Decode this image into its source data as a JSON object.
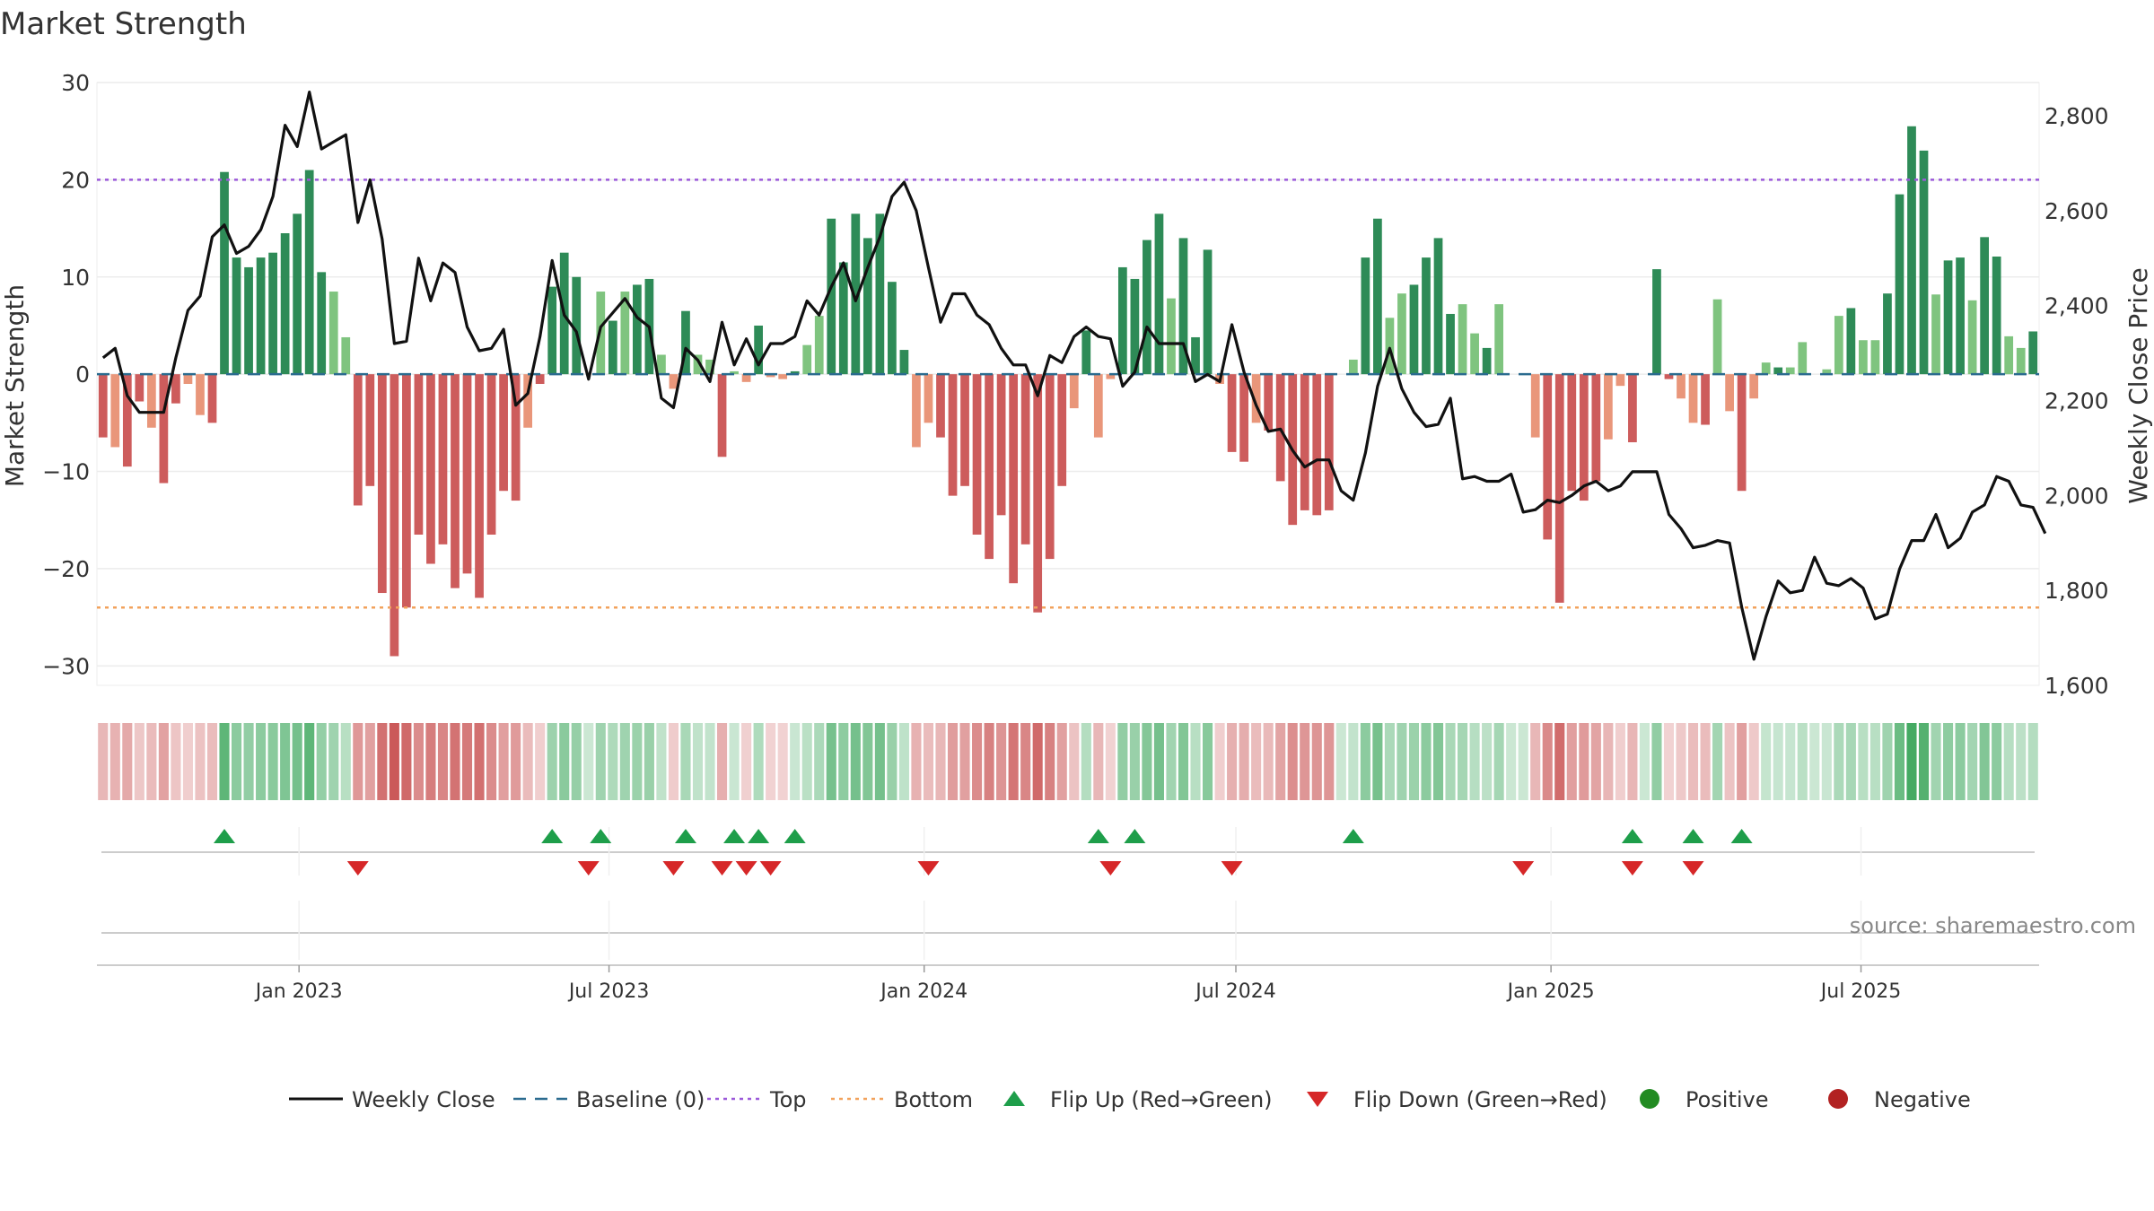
{
  "chart_data": {
    "type": "bar+line",
    "title": "Market Strength",
    "ylabel_left": "Market Strength",
    "ylabel_right": "Weekly Close Price",
    "source": "source: sharemaestro.com",
    "ylim_left": [
      -32,
      30
    ],
    "ylim_right": [
      1600,
      2870
    ],
    "yticks_left": [
      30,
      20,
      10,
      0,
      -10,
      -20,
      -30
    ],
    "yticks_left_labels": [
      "30",
      "20",
      "10",
      "0",
      "−10",
      "−20",
      "−30"
    ],
    "yticks_right": [
      2800,
      2600,
      2400,
      2200,
      2000,
      1800,
      1600
    ],
    "yticks_right_labels": [
      "2,800",
      "2,600",
      "2,400",
      "2,200",
      "2,000",
      "1,800",
      "1,600"
    ],
    "top_level": 20,
    "bottom_level": -24,
    "x_start": "2022-09-05",
    "x_end": "2025-10-13",
    "x_ticks": [
      {
        "date": "2023-01-01",
        "label": "Jan 2023"
      },
      {
        "date": "2023-07-01",
        "label": "Jul 2023"
      },
      {
        "date": "2024-01-01",
        "label": "Jan 2024"
      },
      {
        "date": "2024-07-01",
        "label": "Jul 2024"
      },
      {
        "date": "2025-01-01",
        "label": "Jan 2025"
      },
      {
        "date": "2025-07-01",
        "label": "Jul 2025"
      }
    ],
    "strength": [
      -6.5,
      -7.5,
      -9.5,
      -2.8,
      -5.5,
      -11.2,
      -3,
      -1,
      -4.2,
      -5,
      20.8,
      12,
      11,
      12,
      12.5,
      14.5,
      16.5,
      21,
      10.5,
      8.5,
      3.8,
      -13.5,
      -11.5,
      -22.5,
      -29,
      -24,
      -16.5,
      -19.5,
      -17.5,
      -22,
      -20.5,
      -23,
      -16.5,
      -12,
      -13,
      -5.5,
      -1,
      9,
      12.5,
      10,
      0,
      8.5,
      5.5,
      8.5,
      9.2,
      9.8,
      2,
      -1.5,
      6.5,
      2,
      1.5,
      -8.5,
      0.3,
      -0.8,
      5,
      -0.3,
      -0.5,
      0.3,
      3,
      6,
      16,
      11.5,
      16.5,
      14,
      16.5,
      9.5,
      2.5,
      -7.5,
      -5,
      -6.5,
      -12.5,
      -11.5,
      -16.5,
      -19,
      -14.5,
      -21.5,
      -17.5,
      -24.5,
      -19,
      -11.5,
      -3.5,
      4.5,
      -6.5,
      -0.5,
      11,
      9.8,
      13.8,
      16.5,
      7.8,
      14,
      3.8,
      12.8,
      -1,
      -8,
      -9,
      -5,
      -5.8,
      -11,
      -15.5,
      -14,
      -14.5,
      -14,
      0,
      1.5,
      12,
      16,
      5.8,
      8.3,
      9.2,
      12,
      14,
      6.2,
      7.2,
      4.2,
      2.7,
      7.2,
      0,
      0,
      -6.5,
      -17,
      -23.5,
      -12,
      -13,
      -11,
      -6.7,
      -1.2,
      -7,
      0,
      10.8,
      -0.5,
      -2.5,
      -5,
      -5.2,
      7.7,
      -3.8,
      -12,
      -2.5,
      1.2,
      0.7,
      0.7,
      3.3,
      0,
      0.5,
      6,
      6.8,
      3.5,
      3.5,
      8.3,
      18.5,
      25.5,
      23,
      8.2,
      11.7,
      12,
      7.6,
      14.1,
      12.1,
      3.9,
      2.7,
      4.4
    ],
    "close": [
      2290,
      2310,
      2210,
      2175,
      2175,
      2175,
      2290,
      2390,
      2420,
      2545,
      2570,
      2510,
      2525,
      2560,
      2630,
      2780,
      2735,
      2850,
      2730,
      2745,
      2760,
      2575,
      2665,
      2540,
      2320,
      2325,
      2500,
      2410,
      2490,
      2470,
      2355,
      2305,
      2310,
      2350,
      2190,
      2215,
      2335,
      2495,
      2380,
      2345,
      2245,
      2355,
      2385,
      2415,
      2375,
      2355,
      2205,
      2185,
      2310,
      2285,
      2240,
      2365,
      2275,
      2330,
      2275,
      2320,
      2320,
      2335,
      2410,
      2380,
      2440,
      2490,
      2410,
      2480,
      2545,
      2630,
      2660,
      2600,
      2480,
      2365,
      2425,
      2425,
      2380,
      2360,
      2310,
      2275,
      2275,
      2210,
      2295,
      2280,
      2335,
      2355,
      2335,
      2330,
      2230,
      2260,
      2355,
      2320,
      2320,
      2320,
      2240,
      2255,
      2240,
      2360,
      2260,
      2190,
      2135,
      2140,
      2095,
      2060,
      2075,
      2075,
      2010,
      1990,
      2090,
      2230,
      2310,
      2225,
      2175,
      2145,
      2150,
      2205,
      2035,
      2040,
      2030,
      2030,
      2045,
      1965,
      1970,
      1990,
      1985,
      2000,
      2020,
      2030,
      2010,
      2020,
      2050,
      2050,
      2050,
      1960,
      1930,
      1890,
      1895,
      1905,
      1900,
      1765,
      1655,
      1745,
      1820,
      1795,
      1800,
      1870,
      1815,
      1810,
      1825,
      1805,
      1740,
      1750,
      1845,
      1905,
      1905,
      1960,
      1890,
      1910,
      1965,
      1980,
      2040,
      2030,
      1980,
      1975,
      1920
    ],
    "flip_up_weeks": [
      10,
      37,
      41,
      48,
      52,
      54,
      57,
      82,
      85,
      103,
      126,
      131,
      135
    ],
    "flip_down_weeks": [
      21,
      40,
      47,
      51,
      53,
      55,
      68,
      83,
      93,
      117,
      126,
      131
    ],
    "series_colors": {
      "weekly_close": "#111111",
      "baseline": "#2b6b8f",
      "top": "#9b59d9",
      "bottom": "#f2a25c",
      "strong_green": "#2e8b57",
      "light_green": "#7fc47f",
      "strong_red": "#cd5c5c",
      "light_red": "#e9967a",
      "flip_up": "#1e9e4a",
      "flip_down": "#d62728",
      "positive": "#228b22",
      "negative": "#b22222"
    },
    "legend": [
      {
        "label": "Weekly Close",
        "kind": "line",
        "color": "#111111"
      },
      {
        "label": "Baseline (0)",
        "kind": "dash",
        "color": "#2b6b8f"
      },
      {
        "label": "Top",
        "kind": "dot",
        "color": "#9b59d9"
      },
      {
        "label": "Bottom",
        "kind": "dot",
        "color": "#f2a25c"
      },
      {
        "label": "Flip Up (Red→Green)",
        "kind": "tri-up",
        "color": "#1e9e4a"
      },
      {
        "label": "Flip Down (Green→Red)",
        "kind": "tri-down",
        "color": "#d62728"
      },
      {
        "label": "Positive",
        "kind": "circle",
        "color": "#228b22"
      },
      {
        "label": "Negative",
        "kind": "circle",
        "color": "#b22222"
      }
    ]
  }
}
